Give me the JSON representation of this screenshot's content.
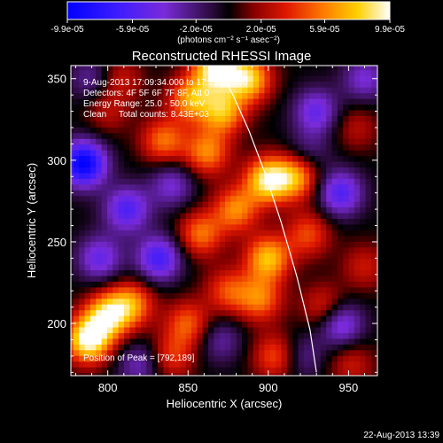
{
  "chart_data": {
    "type": "heatmap",
    "title": "Reconstructed RHESSI Image",
    "xlabel": "Heliocentric X (arcsec)",
    "ylabel": "Heliocentric Y (arcsec)",
    "xlim": [
      777,
      968
    ],
    "ylim": [
      168,
      358
    ],
    "xticks": [
      800,
      850,
      900,
      950
    ],
    "yticks": [
      200,
      250,
      300,
      350
    ],
    "grid": false,
    "colorbar": {
      "position": "top",
      "colormap": "blue-purple-black-red-yellow-white",
      "ticks": [
        -9.9e-05,
        -5.9e-05,
        -2e-05,
        2e-05,
        5.9e-05,
        9.9e-05
      ],
      "tick_labels": [
        "-9.9e-05",
        "-5.9e-05",
        "-2.0e-05",
        "2.0e-05",
        "5.9e-05",
        "9.9e-05"
      ],
      "units_label": "(photons cm⁻² s⁻¹ asec⁻²)"
    },
    "annotations": {
      "time_range": "9-Aug-2013 17:09:34.000 to 17:15:34.000",
      "detectors": "Detectors: 4F 5F 6F 7F 8F, Att 0",
      "energy_range": "Energy Range: 25.0 - 50.0 keV",
      "clean": "Clean     Total counts: 8.43E+03",
      "peak": "Position of Peak = [792,189]"
    },
    "limb_curve": {
      "x": [
        868,
        878,
        888,
        898,
        908,
        918,
        926,
        930
      ],
      "y": [
        358,
        340,
        318,
        292,
        262,
        228,
        196,
        170
      ]
    },
    "sources": [
      {
        "x": 868,
        "y": 357,
        "value": 9.9e-05
      },
      {
        "x": 888,
        "y": 350,
        "value": 8e-05
      },
      {
        "x": 852,
        "y": 338,
        "value": 6.5e-05
      },
      {
        "x": 872,
        "y": 330,
        "value": 7e-05
      },
      {
        "x": 835,
        "y": 312,
        "value": 5.5e-05
      },
      {
        "x": 862,
        "y": 305,
        "value": 6e-05
      },
      {
        "x": 900,
        "y": 288,
        "value": 9e-05
      },
      {
        "x": 918,
        "y": 290,
        "value": 6.5e-05
      },
      {
        "x": 880,
        "y": 270,
        "value": 6e-05
      },
      {
        "x": 858,
        "y": 255,
        "value": 5.5e-05
      },
      {
        "x": 900,
        "y": 240,
        "value": 7.5e-05
      },
      {
        "x": 925,
        "y": 255,
        "value": 4.5e-05
      },
      {
        "x": 895,
        "y": 215,
        "value": 5.5e-05
      },
      {
        "x": 875,
        "y": 220,
        "value": 4.5e-05
      },
      {
        "x": 850,
        "y": 200,
        "value": 5e-05
      },
      {
        "x": 815,
        "y": 212,
        "value": 6e-05
      },
      {
        "x": 788,
        "y": 190,
        "value": 9.9e-05
      },
      {
        "x": 800,
        "y": 205,
        "value": 8e-05
      },
      {
        "x": 840,
        "y": 180,
        "value": 4e-05
      },
      {
        "x": 905,
        "y": 180,
        "value": 5e-05
      },
      {
        "x": 935,
        "y": 210,
        "value": 4e-05
      },
      {
        "x": 808,
        "y": 350,
        "value": 3e-05
      },
      {
        "x": 800,
        "y": 330,
        "value": 2.5e-05
      },
      {
        "x": 955,
        "y": 320,
        "value": 2.5e-05
      },
      {
        "x": 960,
        "y": 235,
        "value": 3e-05
      },
      {
        "x": 952,
        "y": 175,
        "value": 3e-05
      },
      {
        "x": 785,
        "y": 298,
        "value": -9.9e-05
      },
      {
        "x": 812,
        "y": 270,
        "value": -6e-05
      },
      {
        "x": 832,
        "y": 240,
        "value": -6.5e-05
      },
      {
        "x": 795,
        "y": 240,
        "value": -5e-05
      },
      {
        "x": 840,
        "y": 285,
        "value": -4e-05
      },
      {
        "x": 930,
        "y": 330,
        "value": -5e-05
      },
      {
        "x": 945,
        "y": 280,
        "value": -6e-05
      },
      {
        "x": 945,
        "y": 200,
        "value": -5.5e-05
      },
      {
        "x": 920,
        "y": 180,
        "value": -3e-05
      },
      {
        "x": 820,
        "y": 175,
        "value": -3.5e-05
      },
      {
        "x": 870,
        "y": 190,
        "value": -3e-05
      },
      {
        "x": 960,
        "y": 350,
        "value": -4e-05
      },
      {
        "x": 790,
        "y": 350,
        "value": -3e-05
      },
      {
        "x": 925,
        "y": 305,
        "value": -2.5e-05
      }
    ]
  },
  "footer": {
    "timestamp": "22-Aug-2013 13:39"
  }
}
